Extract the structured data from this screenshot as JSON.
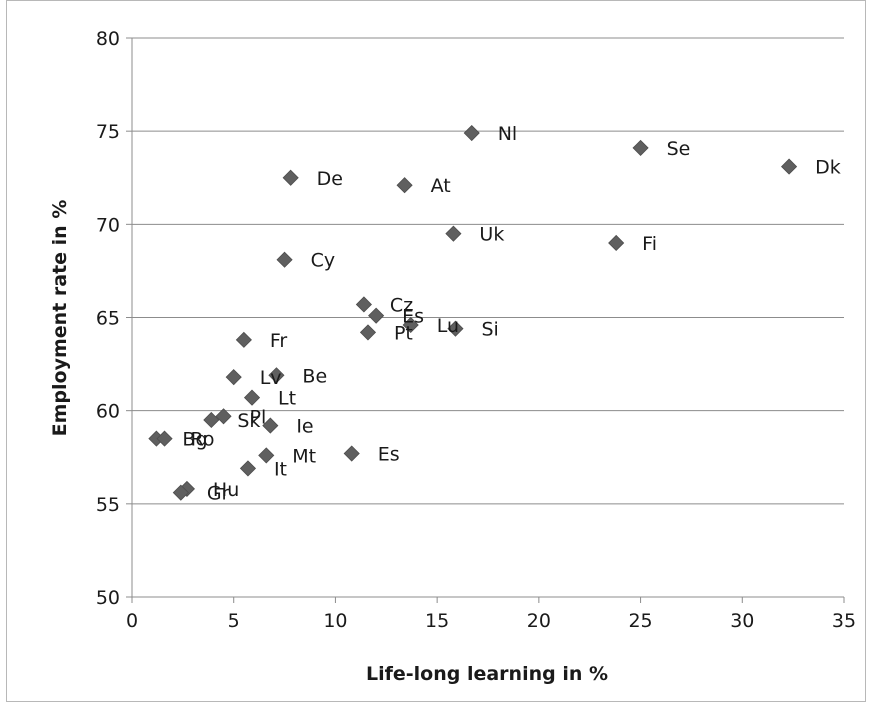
{
  "chart_data": {
    "type": "scatter",
    "title": "",
    "xlabel": "Life-long learning in %",
    "ylabel": "Employment rate in %",
    "xlim": [
      0,
      35
    ],
    "ylim": [
      50,
      80
    ],
    "x_ticks": [
      "0",
      "5",
      "10",
      "15",
      "20",
      "25",
      "30",
      "35"
    ],
    "y_ticks": [
      "50",
      "55",
      "60",
      "65",
      "70",
      "75",
      "80"
    ],
    "grid": "horizontal",
    "legend": "none",
    "marker": "diamond",
    "marker_color": "#5f5f5f",
    "points": [
      {
        "label": "Nl",
        "x": 16.7,
        "y": 74.9
      },
      {
        "label": "Se",
        "x": 25.0,
        "y": 74.1
      },
      {
        "label": "Dk",
        "x": 32.3,
        "y": 73.1
      },
      {
        "label": "De",
        "x": 7.8,
        "y": 72.5
      },
      {
        "label": "At",
        "x": 13.4,
        "y": 72.1
      },
      {
        "label": "Uk",
        "x": 15.8,
        "y": 69.5
      },
      {
        "label": "Fi",
        "x": 23.8,
        "y": 69.0
      },
      {
        "label": "Cy",
        "x": 7.5,
        "y": 68.1
      },
      {
        "label": "Cz",
        "x": 11.4,
        "y": 65.7
      },
      {
        "label": "Es",
        "x": 12.0,
        "y": 65.1
      },
      {
        "label": "Lu",
        "x": 13.7,
        "y": 64.6
      },
      {
        "label": "Si",
        "x": 15.9,
        "y": 64.4
      },
      {
        "label": "Pt",
        "x": 11.6,
        "y": 64.2
      },
      {
        "label": "Fr",
        "x": 5.5,
        "y": 63.8
      },
      {
        "label": "Lv",
        "x": 5.0,
        "y": 61.8
      },
      {
        "label": "Be",
        "x": 7.1,
        "y": 61.9
      },
      {
        "label": "Lt",
        "x": 5.9,
        "y": 60.7
      },
      {
        "label": "Pl",
        "x": 4.5,
        "y": 59.7
      },
      {
        "label": "Sk",
        "x": 3.9,
        "y": 59.5
      },
      {
        "label": "Ie",
        "x": 6.8,
        "y": 59.2
      },
      {
        "label": "Bg",
        "x": 1.2,
        "y": 58.5
      },
      {
        "label": "Ro",
        "x": 1.6,
        "y": 58.5
      },
      {
        "label": "Es",
        "x": 10.8,
        "y": 57.7
      },
      {
        "label": "Mt",
        "x": 6.6,
        "y": 57.6
      },
      {
        "label": "It",
        "x": 5.7,
        "y": 56.9
      },
      {
        "label": "Hu",
        "x": 2.7,
        "y": 55.8
      },
      {
        "label": "Gr",
        "x": 2.4,
        "y": 55.6
      }
    ]
  }
}
